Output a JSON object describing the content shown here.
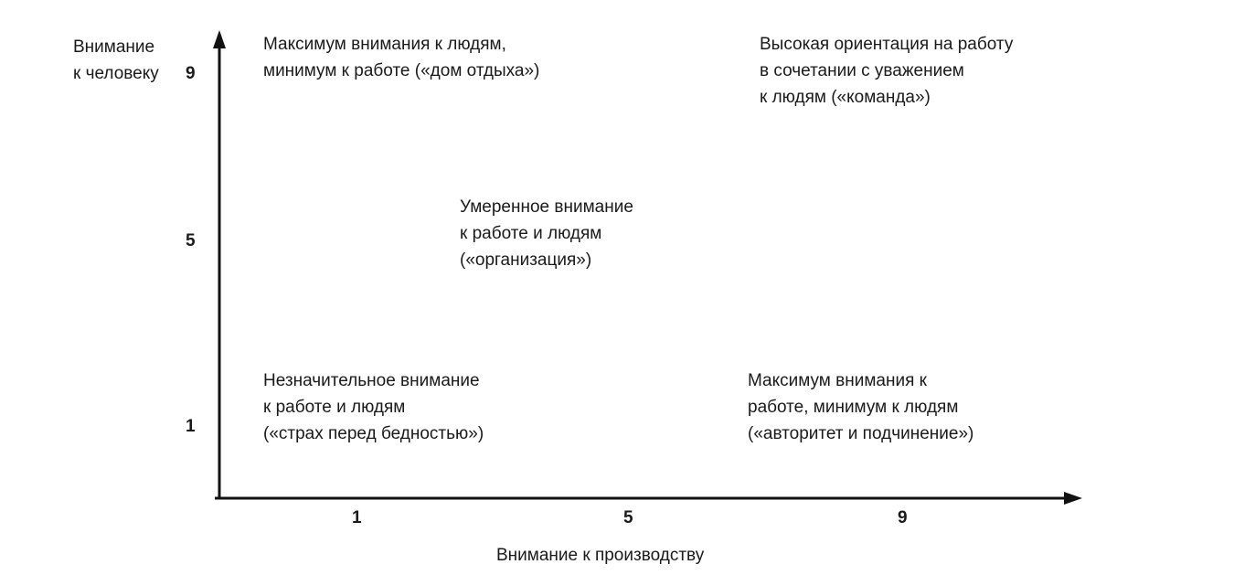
{
  "y_axis": {
    "title_lines": [
      "Внимание",
      "к человеку"
    ],
    "ticks": [
      "9",
      "5",
      "1"
    ]
  },
  "x_axis": {
    "title": "Внимание к производству",
    "ticks": [
      "1",
      "5",
      "9"
    ]
  },
  "styles": [
    {
      "id": "country-club",
      "grid": [
        1,
        9
      ],
      "lines": [
        "Максимум внимания к людям,",
        "минимум к работе («дом отдыха»)"
      ]
    },
    {
      "id": "team",
      "grid": [
        9,
        9
      ],
      "lines": [
        "Высокая ориентация на работу",
        "в сочетании с уважением",
        "к людям («команда»)"
      ]
    },
    {
      "id": "middle-road",
      "grid": [
        5,
        5
      ],
      "lines": [
        "Умеренное внимание",
        "к работе и людям",
        "(«организация»)"
      ]
    },
    {
      "id": "impoverished",
      "grid": [
        1,
        1
      ],
      "lines": [
        "Незначительное внимание",
        "к работе и людям",
        "(«страх перед бедностью»)"
      ]
    },
    {
      "id": "authority-compliance",
      "grid": [
        9,
        1
      ],
      "lines": [
        "Максимум внимания к",
        "работе, минимум к людям",
        "(«авторитет и подчинение»)"
      ]
    }
  ]
}
